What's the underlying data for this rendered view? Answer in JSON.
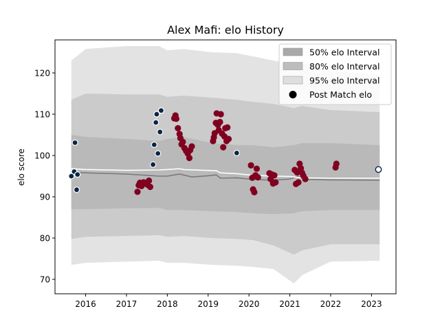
{
  "chart_data": {
    "type": "scatter",
    "title": "Alex Mafi: elo History",
    "xlabel": "",
    "ylabel": "elo score",
    "xlim": [
      2015.25,
      2023.6
    ],
    "ylim": [
      66.5,
      128
    ],
    "xticks": [
      2016,
      2017,
      2018,
      2019,
      2020,
      2021,
      2022,
      2023
    ],
    "yticks": [
      70,
      80,
      90,
      100,
      110,
      120
    ],
    "grid": false,
    "legend": {
      "position": "top-right",
      "entries": [
        {
          "label": "50% elo Interval",
          "color": "#a9a9a9"
        },
        {
          "label": "80% elo Interval",
          "color": "#bdbdbd"
        },
        {
          "label": "95% elo Interval",
          "color": "#dedede"
        },
        {
          "label": "Post Match elo",
          "color": "#000000",
          "marker": "circle"
        }
      ]
    },
    "colors": {
      "band95": "#e3e3e3",
      "band80": "#cbcbcb",
      "band50": "#b9b9b9",
      "median_line": "#7a7a7a",
      "mean_line": "#ffffff",
      "win_marker": "#800020",
      "loss_marker": "#0b2545",
      "future_marker": "#ffffff"
    },
    "bands": {
      "x": [
        2015.65,
        2016.0,
        2017.0,
        2017.8,
        2018.0,
        2018.4,
        2019.1,
        2019.7,
        2020.1,
        2020.6,
        2021.1,
        2021.3,
        2022.0,
        2023.2
      ],
      "b95_low": [
        73.5,
        74.0,
        74.3,
        74.5,
        74.0,
        74.0,
        73.5,
        73.3,
        73.0,
        72.5,
        69.0,
        71.0,
        74.3,
        74.5
      ],
      "b95_high": [
        123.0,
        125.8,
        126.5,
        126.5,
        125.5,
        125.8,
        125.0,
        124.8,
        124.0,
        123.0,
        122.0,
        122.5,
        120.5,
        119.5
      ],
      "b80_low": [
        79.8,
        80.3,
        80.5,
        80.7,
        80.3,
        80.5,
        80.0,
        79.8,
        79.5,
        78.2,
        76.0,
        77.0,
        78.5,
        78.5
      ],
      "b80_high": [
        113.5,
        115.0,
        114.8,
        114.8,
        114.2,
        114.5,
        114.0,
        113.5,
        113.0,
        112.5,
        111.5,
        112.0,
        111.0,
        110.5
      ],
      "b50_low": [
        87.0,
        87.0,
        87.2,
        87.3,
        86.8,
        86.8,
        86.5,
        86.3,
        86.0,
        85.8,
        86.0,
        86.5,
        86.8,
        86.8
      ],
      "b50_high": [
        105.0,
        104.5,
        104.0,
        103.5,
        104.0,
        104.5,
        103.0,
        102.5,
        102.5,
        102.0,
        102.5,
        103.0,
        103.0,
        102.5
      ]
    },
    "series": [
      {
        "x": [
          2015.65,
          2016.0,
          2017.0,
          2017.5,
          2017.8,
          2018.0,
          2018.3,
          2018.6,
          2019.0,
          2019.2,
          2019.3,
          2019.7,
          2020.1,
          2020.6,
          2021.0,
          2021.2,
          2021.4,
          2022.0,
          2023.2
        ],
        "y": [
          95.9,
          95.8,
          95.5,
          95.2,
          95.0,
          95.0,
          95.5,
          94.8,
          95.1,
          95.3,
          94.5,
          94.6,
          94.2,
          94.0,
          94.3,
          95.0,
          94.2,
          94.1,
          94.0
        ]
      },
      {
        "x": [
          2015.65,
          2016.0,
          2017.0,
          2017.8,
          2018.0,
          2018.3,
          2018.4,
          2019.2,
          2019.3,
          2019.7,
          2020.1,
          2020.6,
          2021.0,
          2021.3,
          2022.0,
          2023.2
        ],
        "y": [
          96.8,
          96.6,
          96.4,
          96.5,
          96.6,
          96.8,
          96.6,
          96.3,
          95.8,
          95.6,
          95.2,
          95.0,
          94.9,
          94.6,
          94.5,
          94.5
        ]
      },
      {
        "points": [
          [
            2017.27,
            91.2
          ],
          [
            2017.3,
            92.8
          ],
          [
            2017.33,
            93.4
          ],
          [
            2017.37,
            92.6
          ],
          [
            2017.42,
            93.5
          ],
          [
            2017.47,
            93.2
          ],
          [
            2017.52,
            92.9
          ],
          [
            2017.55,
            93.9
          ],
          [
            2017.58,
            92.4
          ],
          [
            2018.17,
            109.0
          ],
          [
            2018.2,
            109.7
          ],
          [
            2018.22,
            108.9
          ],
          [
            2018.26,
            106.6
          ],
          [
            2018.3,
            105.2
          ],
          [
            2018.32,
            104.2
          ],
          [
            2018.35,
            102.7
          ],
          [
            2018.38,
            103.3
          ],
          [
            2018.42,
            101.8
          ],
          [
            2018.46,
            101.1
          ],
          [
            2018.5,
            100.5
          ],
          [
            2018.54,
            99.4
          ],
          [
            2018.56,
            101.3
          ],
          [
            2018.6,
            102.2
          ],
          [
            2019.12,
            103.5
          ],
          [
            2019.14,
            104.4
          ],
          [
            2019.16,
            105.4
          ],
          [
            2019.19,
            107.9
          ],
          [
            2019.21,
            110.2
          ],
          [
            2019.24,
            107.4
          ],
          [
            2019.26,
            106.1
          ],
          [
            2019.29,
            108.1
          ],
          [
            2019.31,
            110.0
          ],
          [
            2019.34,
            105.3
          ],
          [
            2019.37,
            102.0
          ],
          [
            2019.4,
            104.6
          ],
          [
            2019.42,
            106.6
          ],
          [
            2019.45,
            103.5
          ],
          [
            2019.47,
            106.8
          ],
          [
            2019.5,
            104.0
          ],
          [
            2020.05,
            97.6
          ],
          [
            2020.08,
            94.6
          ],
          [
            2020.1,
            91.8
          ],
          [
            2020.13,
            91.1
          ],
          [
            2020.16,
            95.2
          ],
          [
            2020.19,
            96.8
          ],
          [
            2020.22,
            94.7
          ],
          [
            2020.5,
            95.7
          ],
          [
            2020.53,
            94.3
          ],
          [
            2020.56,
            95.4
          ],
          [
            2020.59,
            93.2
          ],
          [
            2020.62,
            95.2
          ],
          [
            2020.65,
            93.5
          ],
          [
            2021.12,
            96.5
          ],
          [
            2021.15,
            93.1
          ],
          [
            2021.18,
            95.9
          ],
          [
            2021.21,
            93.5
          ],
          [
            2021.24,
            98.0
          ],
          [
            2021.27,
            96.9
          ],
          [
            2021.3,
            95.8
          ],
          [
            2021.33,
            95.1
          ],
          [
            2021.38,
            94.3
          ],
          [
            2022.12,
            97.1
          ],
          [
            2022.14,
            98.0
          ]
        ]
      },
      {
        "points": [
          [
            2015.65,
            95.0
          ],
          [
            2015.72,
            96.1
          ],
          [
            2015.74,
            103.1
          ],
          [
            2015.78,
            91.7
          ],
          [
            2015.8,
            95.4
          ],
          [
            2017.65,
            97.8
          ],
          [
            2017.68,
            102.6
          ],
          [
            2017.72,
            108.0
          ],
          [
            2017.74,
            110.0
          ],
          [
            2017.77,
            100.5
          ],
          [
            2017.82,
            105.7
          ],
          [
            2017.85,
            110.9
          ],
          [
            2019.7,
            100.6
          ]
        ]
      },
      {
        "points": [
          [
            2023.17,
            96.6
          ]
        ]
      }
    ]
  }
}
